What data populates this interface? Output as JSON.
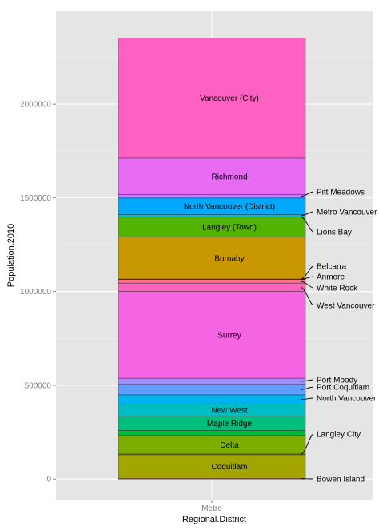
{
  "chart_data": {
    "type": "bar",
    "stacked": true,
    "xlabel": "Regional.District",
    "ylabel": "Population.2010",
    "categories": [
      "Metro"
    ],
    "ylim": [
      -110000,
      2495000
    ],
    "y_ticks": [
      0,
      500000,
      1000000,
      1500000,
      2000000
    ],
    "grid": true,
    "segments": [
      {
        "name": "Bowen Island",
        "value": 3600,
        "color": "#F8766D",
        "label": "outside"
      },
      {
        "name": "Coquitlam",
        "value": 125600,
        "color": "#A3A500",
        "label": "inside"
      },
      {
        "name": "Langley City",
        "value": 4200,
        "color": "#8FAA00",
        "label": "outside"
      },
      {
        "name": "Delta",
        "value": 98000,
        "color": "#7CAE00",
        "label": "inside"
      },
      {
        "name": "Langley City 2",
        "value": 0,
        "color": "#00BA38",
        "label": "none"
      },
      {
        "name": "Langley City",
        "value": 27400,
        "color": "#00BA38",
        "label": "none"
      },
      {
        "name": "Maple Ridge",
        "value": 76000,
        "color": "#00BF7D",
        "label": "inside"
      },
      {
        "name": "New West",
        "value": 66000,
        "color": "#00BFC4",
        "label": "inside"
      },
      {
        "name": "North Vancouver",
        "value": 48200,
        "color": "#00B4EF",
        "label": "outside"
      },
      {
        "name": "Port Coquitlam",
        "value": 55800,
        "color": "#619CFF",
        "label": "outside"
      },
      {
        "name": "Port Moody",
        "value": 33000,
        "color": "#9F8CFF",
        "label": "outside"
      },
      {
        "name": "Surrey",
        "value": 463000,
        "color": "#F564E3",
        "label": "inside"
      },
      {
        "name": "West Vancouver",
        "value": 44000,
        "color": "#FF62BC",
        "label": "outside"
      },
      {
        "name": "White Rock",
        "value": 19000,
        "color": "#FF6C90",
        "label": "outside"
      },
      {
        "name": "Anmore",
        "value": 2100,
        "color": "#E58700",
        "label": "outside"
      },
      {
        "name": "Belcarra",
        "value": 700,
        "color": "#D89000",
        "label": "outside"
      },
      {
        "name": "Burnaby",
        "value": 224000,
        "color": "#C99800",
        "label": "inside"
      },
      {
        "name": "Langley (Town)",
        "value": 106000,
        "color": "#53B400",
        "label": "inside"
      },
      {
        "name": "Lions Bay",
        "value": 1400,
        "color": "#00C08B",
        "label": "outside"
      },
      {
        "name": "Metro Vancouver",
        "value": 12000,
        "color": "#00BCD8",
        "label": "outside"
      },
      {
        "name": "North Vancouver (District)",
        "value": 88000,
        "color": "#00A9FF",
        "label": "inside"
      },
      {
        "name": "Pitt Meadows",
        "value": 18000,
        "color": "#B983FF",
        "label": "outside"
      },
      {
        "name": "Richmond",
        "value": 195000,
        "color": "#E76BF3",
        "label": "inside"
      },
      {
        "name": "Vancouver (City)",
        "value": 642000,
        "color": "#FF61C3",
        "label": "inside"
      }
    ]
  }
}
